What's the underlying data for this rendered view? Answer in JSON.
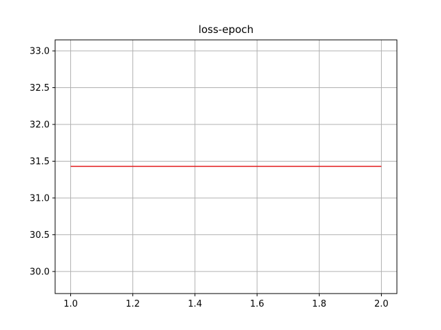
{
  "chart_data": {
    "type": "line",
    "title": "loss-epoch",
    "xlabel": "",
    "ylabel": "",
    "xlim": [
      0.95,
      2.05
    ],
    "ylim": [
      29.7,
      33.15
    ],
    "x_ticks": [
      1.0,
      1.2,
      1.4,
      1.6,
      1.8,
      2.0
    ],
    "x_tick_labels": [
      "1.0",
      "1.2",
      "1.4",
      "1.6",
      "1.8",
      "2.0"
    ],
    "y_ticks": [
      30.0,
      30.5,
      31.0,
      31.5,
      32.0,
      32.5,
      33.0
    ],
    "y_tick_labels": [
      "30.0",
      "30.5",
      "31.0",
      "31.5",
      "32.0",
      "32.5",
      "33.0"
    ],
    "grid": true,
    "series": [
      {
        "x": [
          1.0,
          2.0
        ],
        "y": [
          31.43,
          31.43
        ],
        "color": "#e41a1c"
      }
    ]
  },
  "colors": {
    "grid": "#b0b0b0",
    "axes": "#000000",
    "background": "#ffffff"
  }
}
